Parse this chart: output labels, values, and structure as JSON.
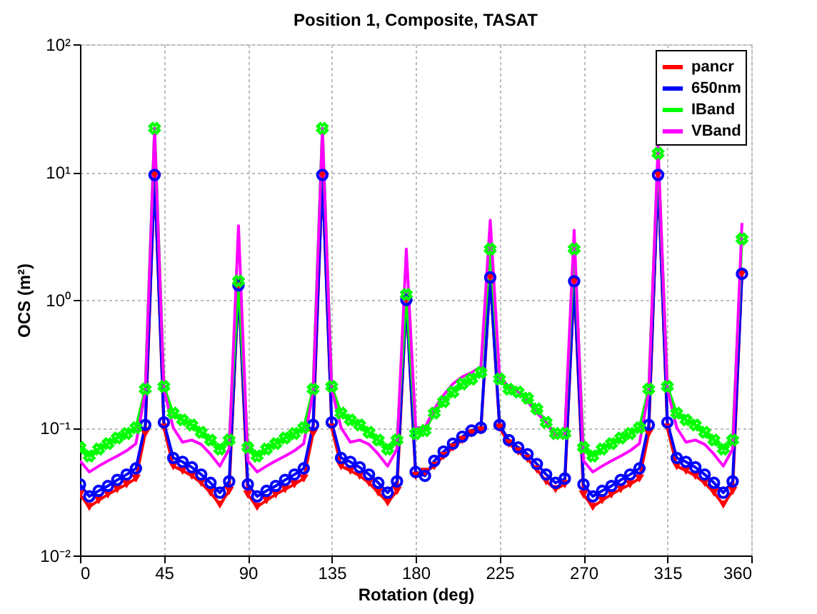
{
  "chart_data": {
    "type": "line",
    "title": "Position 1, Composite, TASAT",
    "xlabel": "Rotation (deg)",
    "ylabel": "OCS (m²)",
    "x": [
      0,
      5,
      10,
      15,
      20,
      25,
      30,
      35,
      40,
      45,
      50,
      55,
      60,
      65,
      70,
      75,
      80,
      85,
      90,
      95,
      100,
      105,
      110,
      115,
      120,
      125,
      130,
      135,
      140,
      145,
      150,
      155,
      160,
      165,
      170,
      175,
      180,
      185,
      190,
      195,
      200,
      205,
      210,
      215,
      220,
      225,
      230,
      235,
      240,
      245,
      250,
      255,
      260,
      265,
      270,
      275,
      280,
      285,
      290,
      295,
      300,
      305,
      310,
      315,
      320,
      325,
      330,
      335,
      340,
      345,
      350,
      355
    ],
    "series": [
      {
        "name": "pancr",
        "color": "#ff0000",
        "marker": "triangle-down",
        "values": [
          0.03,
          0.024,
          0.027,
          0.03,
          0.033,
          0.036,
          0.04,
          0.09,
          9.5,
          0.1,
          0.05,
          0.046,
          0.042,
          0.037,
          0.031,
          0.025,
          0.032,
          1.3,
          0.03,
          0.024,
          0.027,
          0.03,
          0.033,
          0.036,
          0.04,
          0.09,
          9.5,
          0.1,
          0.05,
          0.046,
          0.042,
          0.037,
          0.031,
          0.026,
          0.032,
          1.0,
          0.042,
          0.045,
          0.05,
          0.06,
          0.07,
          0.08,
          0.09,
          0.095,
          1.5,
          0.1,
          0.075,
          0.065,
          0.057,
          0.047,
          0.038,
          0.033,
          0.036,
          1.4,
          0.03,
          0.024,
          0.027,
          0.03,
          0.033,
          0.036,
          0.04,
          0.09,
          9.5,
          0.1,
          0.05,
          0.046,
          0.042,
          0.037,
          0.031,
          0.025,
          0.032,
          1.6
        ]
      },
      {
        "name": "650nm",
        "color": "#0000ff",
        "marker": "circle",
        "values": [
          0.036,
          0.029,
          0.032,
          0.035,
          0.039,
          0.043,
          0.048,
          0.105,
          9.5,
          0.11,
          0.058,
          0.054,
          0.049,
          0.043,
          0.037,
          0.031,
          0.038,
          1.3,
          0.036,
          0.029,
          0.032,
          0.035,
          0.039,
          0.043,
          0.048,
          0.105,
          9.5,
          0.11,
          0.058,
          0.054,
          0.049,
          0.043,
          0.037,
          0.031,
          0.038,
          1.0,
          0.045,
          0.042,
          0.055,
          0.065,
          0.075,
          0.085,
          0.095,
          0.1,
          1.5,
          0.105,
          0.08,
          0.07,
          0.062,
          0.052,
          0.043,
          0.037,
          0.04,
          1.4,
          0.036,
          0.029,
          0.032,
          0.035,
          0.039,
          0.043,
          0.048,
          0.105,
          9.5,
          0.11,
          0.058,
          0.054,
          0.049,
          0.043,
          0.037,
          0.031,
          0.038,
          1.6
        ]
      },
      {
        "name": "IBand",
        "color": "#00ff00",
        "marker": "cross",
        "values": [
          0.07,
          0.06,
          0.068,
          0.075,
          0.083,
          0.09,
          0.1,
          0.2,
          22,
          0.21,
          0.13,
          0.115,
          0.105,
          0.092,
          0.08,
          0.068,
          0.08,
          1.4,
          0.07,
          0.06,
          0.068,
          0.075,
          0.083,
          0.09,
          0.1,
          0.2,
          22,
          0.21,
          0.13,
          0.115,
          0.105,
          0.092,
          0.08,
          0.068,
          0.08,
          1.1,
          0.09,
          0.095,
          0.13,
          0.16,
          0.19,
          0.22,
          0.24,
          0.27,
          2.5,
          0.24,
          0.2,
          0.19,
          0.17,
          0.14,
          0.11,
          0.09,
          0.09,
          2.5,
          0.07,
          0.06,
          0.068,
          0.075,
          0.083,
          0.09,
          0.1,
          0.2,
          14,
          0.21,
          0.13,
          0.115,
          0.105,
          0.092,
          0.08,
          0.068,
          0.08,
          3.0
        ]
      },
      {
        "name": "VBand",
        "color": "#ff00ff",
        "marker": "none",
        "values": [
          0.055,
          0.045,
          0.05,
          0.055,
          0.06,
          0.066,
          0.075,
          0.19,
          22,
          0.2,
          0.1,
          0.077,
          0.08,
          0.074,
          0.062,
          0.05,
          0.068,
          3.8,
          0.055,
          0.045,
          0.05,
          0.055,
          0.06,
          0.066,
          0.075,
          0.19,
          22,
          0.2,
          0.1,
          0.077,
          0.08,
          0.074,
          0.062,
          0.05,
          0.068,
          2.5,
          0.1,
          0.1,
          0.14,
          0.18,
          0.22,
          0.25,
          0.27,
          0.3,
          4.2,
          0.25,
          0.21,
          0.19,
          0.16,
          0.13,
          0.11,
          0.085,
          0.09,
          3.5,
          0.055,
          0.045,
          0.05,
          0.055,
          0.06,
          0.066,
          0.075,
          0.19,
          16,
          0.2,
          0.1,
          0.077,
          0.08,
          0.074,
          0.062,
          0.05,
          0.068,
          4.0
        ]
      }
    ],
    "xlim": [
      0,
      360
    ],
    "xticks": [
      0,
      45,
      90,
      135,
      180,
      225,
      270,
      315,
      360
    ],
    "ylim": [
      0.01,
      100
    ],
    "yticks": [
      {
        "value": 0.01,
        "label": "10⁻²"
      },
      {
        "value": 0.1,
        "label": "10⁻¹"
      },
      {
        "value": 1,
        "label": "10⁰"
      },
      {
        "value": 10,
        "label": "10¹"
      },
      {
        "value": 100,
        "label": "10²"
      }
    ],
    "log": "y",
    "grid": true,
    "legend": "top right",
    "line_style": "solid"
  }
}
